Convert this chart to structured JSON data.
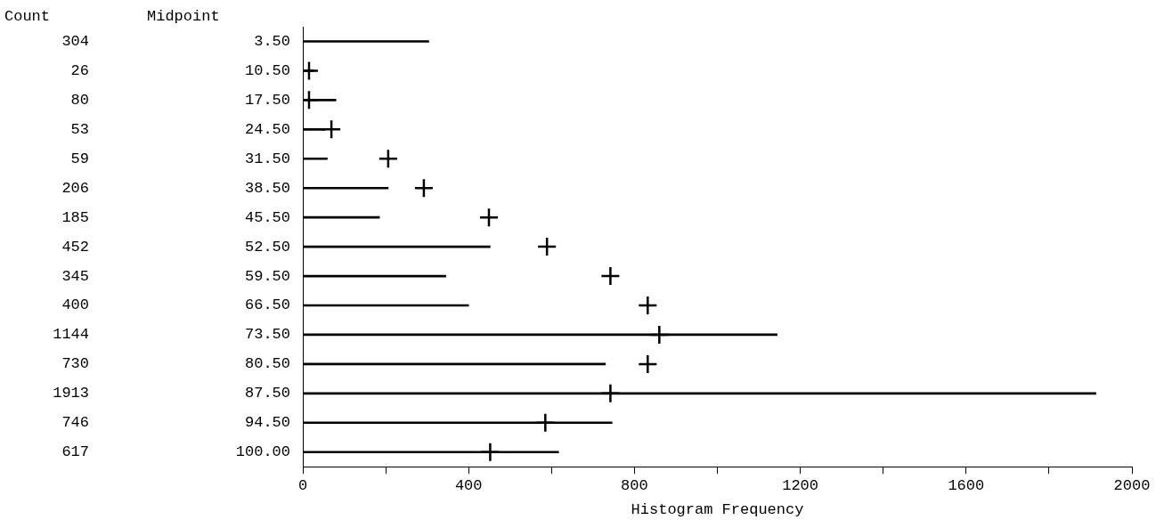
{
  "chart_data": {
    "type": "bar",
    "orientation": "horizontal",
    "ylabel": "Midpoint",
    "xlabel": "Histogram Frequency",
    "annotations": [
      "Count"
    ],
    "categories": [
      "3.50",
      "10.50",
      "17.50",
      "24.50",
      "31.50",
      "38.50",
      "45.50",
      "52.50",
      "59.50",
      "66.50",
      "73.50",
      "80.50",
      "87.50",
      "94.50",
      "100.00"
    ],
    "series": [
      {
        "color": "#000000",
        "values": [
          304,
          26,
          80,
          53,
          59,
          206,
          185,
          452,
          345,
          400,
          1144,
          730,
          1913,
          746,
          617
        ],
        "value_labels": [
          "304",
          "26",
          "80",
          "53",
          "59",
          "206",
          "185",
          "452",
          "345",
          "400",
          "1144",
          "730",
          "1913",
          "746",
          "617"
        ]
      },
      {
        "type": "scatter",
        "color": "#000000",
        "marker": "cross",
        "values": [
          null,
          15,
          15,
          69,
          206,
          292,
          449,
          589,
          742,
          832,
          860,
          832,
          742,
          585,
          452
        ]
      }
    ],
    "xlim": [
      0,
      2000
    ],
    "xticks": [
      0,
      {
        "value": 200,
        "label": null
      },
      400,
      {
        "value": 600,
        "label": null
      },
      800,
      {
        "value": 1000,
        "label": null
      },
      1200,
      {
        "value": 1400,
        "label": null
      },
      1600,
      {
        "value": 1800,
        "label": null
      },
      2000
    ],
    "grid": false,
    "legend": false
  }
}
